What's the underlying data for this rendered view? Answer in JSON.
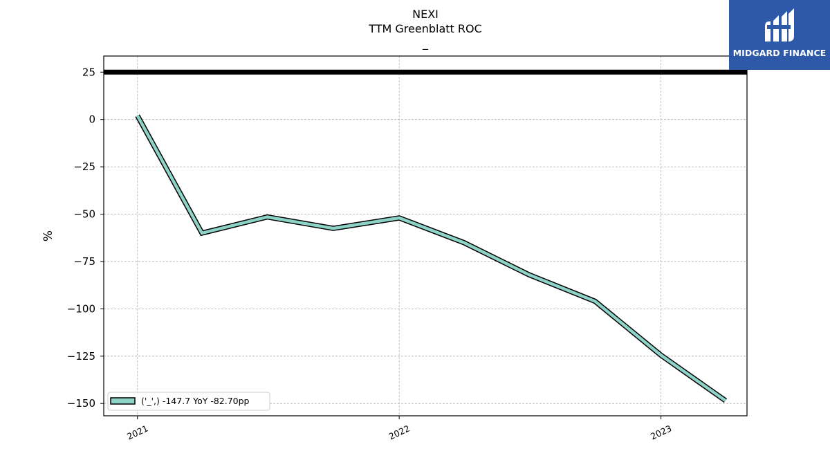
{
  "brand": {
    "name": "MIDGARD FINANCE",
    "logo_color": "#2d59a8"
  },
  "chart_data": {
    "type": "line",
    "title": "NEXI",
    "subtitle": "TTM Greenblatt ROC",
    "subtitle2": "_",
    "xlabel": "",
    "ylabel": "%",
    "x_ticks": [
      "2021",
      "2022",
      "2023"
    ],
    "y_ticks": [
      25,
      0,
      -25,
      -50,
      -75,
      -100,
      -125,
      -150
    ],
    "y_tick_labels": [
      "25",
      "0",
      "−25",
      "−50",
      "−75",
      "−100",
      "−125",
      "−150"
    ],
    "ylim": [
      -156.5,
      33.5
    ],
    "xlim": [
      "2020-11-15",
      "2023-05-01"
    ],
    "grid": true,
    "legend_position": "lower-left",
    "reference_line": {
      "y": 25,
      "color": "#000000"
    },
    "series": [
      {
        "name": "('_',) -147.7 YoY -82.70pp",
        "color": "#8dd3c7",
        "x": [
          "2021-01-01",
          "2021-04-01",
          "2021-07-01",
          "2021-10-01",
          "2022-01-01",
          "2022-04-01",
          "2022-07-01",
          "2022-10-01",
          "2023-01-01",
          "2023-04-01"
        ],
        "values": [
          2,
          -60,
          -51.5,
          -57.5,
          -52,
          -65,
          -82,
          -96,
          -124.5,
          -148.5
        ]
      }
    ]
  }
}
